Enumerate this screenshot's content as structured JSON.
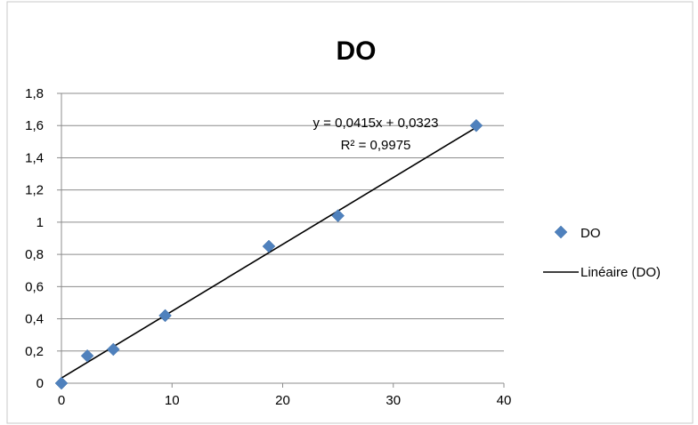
{
  "chart_data": {
    "type": "scatter",
    "title": "DO",
    "xlabel": "",
    "ylabel": "",
    "xlim": [
      0,
      40
    ],
    "ylim": [
      0,
      1.8
    ],
    "x_ticks": [
      "0",
      "10",
      "20",
      "30",
      "40"
    ],
    "y_ticks": [
      "0",
      "0,2",
      "0,4",
      "0,6",
      "0,8",
      "1",
      "1,2",
      "1,4",
      "1,6",
      "1,8"
    ],
    "grid": "horizontal",
    "legend_position": "right",
    "series": [
      {
        "name": "DO",
        "color": "#4f81bd",
        "marker": "diamond",
        "points": [
          {
            "x": 0,
            "y": 0
          },
          {
            "x": 2.34,
            "y": 0.17
          },
          {
            "x": 4.69,
            "y": 0.21
          },
          {
            "x": 9.38,
            "y": 0.42
          },
          {
            "x": 18.75,
            "y": 0.85
          },
          {
            "x": 25,
            "y": 1.04
          },
          {
            "x": 37.5,
            "y": 1.6
          }
        ]
      }
    ],
    "trendline": {
      "name": "Linéaire (DO)",
      "type": "linear",
      "slope": 0.0415,
      "intercept": 0.0323,
      "x_range": [
        0,
        37.5
      ],
      "equation": "y = 0,0415x + 0,0323",
      "r_squared": "R² = 0,9975",
      "color": "#000000"
    }
  }
}
